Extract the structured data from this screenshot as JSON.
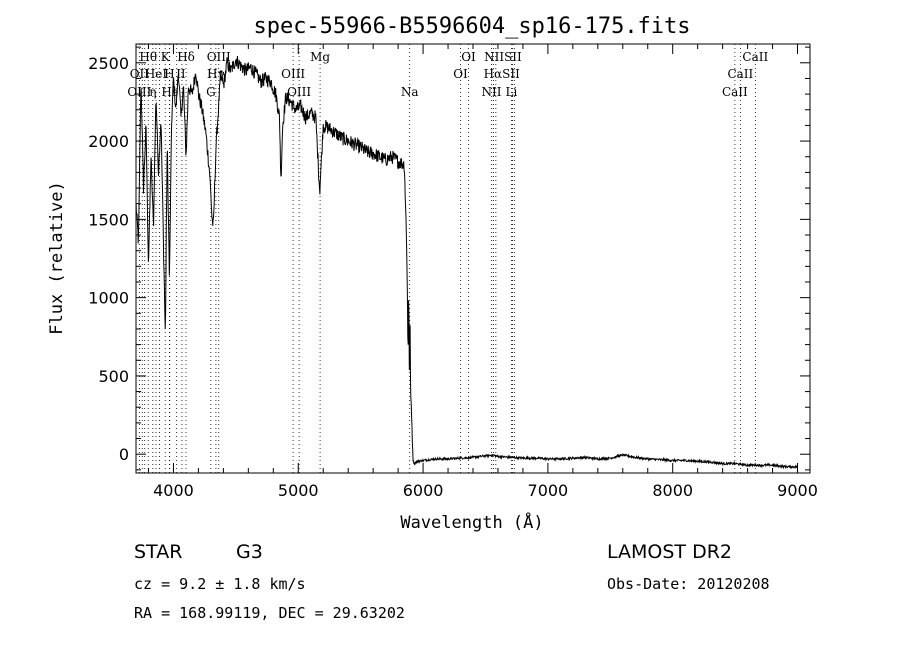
{
  "chart_data": {
    "type": "line",
    "title": "spec-55966-B5596604_sp16-175.fits",
    "xlabel": "Wavelength (Å)",
    "ylabel": "Flux (relative)",
    "xlim": [
      3700,
      9100
    ],
    "ylim": [
      -120,
      2620
    ],
    "xticks": [
      4000,
      5000,
      6000,
      7000,
      8000,
      9000
    ],
    "yticks": [
      0,
      500,
      1000,
      1500,
      2000,
      2500
    ],
    "grid": false,
    "legend": "none",
    "series": [
      {
        "x": [
          3700,
          3720,
          3740,
          3760,
          3780,
          3800,
          3820,
          3840,
          3860,
          3880,
          3900,
          3920,
          3935,
          3950,
          3968,
          3985,
          4000,
          4020,
          4040,
          4060,
          4080,
          4101,
          4120,
          4150,
          4180,
          4200,
          4230,
          4260,
          4290,
          4310,
          4320,
          4340,
          4360,
          4380,
          4400,
          4430,
          4460,
          4500,
          4540,
          4580,
          4620,
          4660,
          4700,
          4740,
          4780,
          4820,
          4850,
          4861,
          4875,
          4900,
          4940,
          4980,
          5020,
          5060,
          5100,
          5140,
          5172,
          5200,
          5250,
          5300,
          5350,
          5400,
          5450,
          5500,
          5550,
          5600,
          5650,
          5700,
          5750,
          5800,
          5850,
          5870,
          5880,
          5885,
          5890,
          5895,
          5900,
          5910,
          5920,
          5930,
          5940,
          5960,
          6000,
          6050,
          6100,
          6200,
          6300,
          6400,
          6500,
          6563,
          6600,
          6700,
          6800,
          6900,
          7000,
          7100,
          7200,
          7300,
          7400,
          7500,
          7600,
          7700,
          7800,
          7900,
          8000,
          8100,
          8200,
          8300,
          8400,
          8500,
          8600,
          8700,
          8800,
          8900,
          9000
        ],
        "y": [
          1600,
          1350,
          2400,
          1700,
          2100,
          1200,
          1900,
          1450,
          2300,
          1800,
          2150,
          1350,
          750,
          2000,
          1100,
          2100,
          2400,
          2200,
          2450,
          2150,
          2350,
          1900,
          2350,
          2300,
          2450,
          2300,
          2200,
          2050,
          1800,
          1500,
          1450,
          1950,
          2200,
          2450,
          2350,
          2500,
          2450,
          2520,
          2480,
          2450,
          2470,
          2430,
          2380,
          2400,
          2380,
          2300,
          2150,
          1750,
          2100,
          2280,
          2250,
          2200,
          2220,
          2150,
          2180,
          2150,
          1680,
          2100,
          2080,
          2050,
          2020,
          2000,
          1980,
          1960,
          1930,
          1920,
          1900,
          1880,
          1900,
          1870,
          1850,
          1300,
          600,
          1100,
          550,
          900,
          400,
          200,
          -40,
          -60,
          -50,
          -45,
          -40,
          -35,
          -30,
          -30,
          -25,
          -20,
          -10,
          -5,
          -15,
          -20,
          -25,
          -25,
          -30,
          -30,
          -25,
          -20,
          -30,
          -25,
          -5,
          -20,
          -30,
          -35,
          -40,
          -40,
          -45,
          -50,
          -60,
          -60,
          -70,
          -70,
          -70,
          -80,
          -80
        ]
      }
    ],
    "line_labels": [
      {
        "text": "Hθ",
        "x": 3798,
        "row": 0
      },
      {
        "text": "K",
        "x": 3934,
        "row": 0
      },
      {
        "text": "Hδ",
        "x": 4101,
        "row": 0
      },
      {
        "text": "OIII",
        "x": 4363,
        "row": 0
      },
      {
        "text": "Mg",
        "x": 5175,
        "row": 0
      },
      {
        "text": "OI",
        "x": 6364,
        "row": 0
      },
      {
        "text": "NIISII",
        "x": 6640,
        "row": 0
      },
      {
        "text": "CaII",
        "x": 8662,
        "row": 0
      },
      {
        "text": "OII",
        "x": 3727,
        "row": 1
      },
      {
        "text": "HeI",
        "x": 3860,
        "row": 1
      },
      {
        "text": "H",
        "x": 3968,
        "row": 1
      },
      {
        "text": "II",
        "x": 4060,
        "row": 1
      },
      {
        "text": "Hγ",
        "x": 4340,
        "row": 1
      },
      {
        "text": "OIII",
        "x": 4959,
        "row": 1
      },
      {
        "text": "OI",
        "x": 6300,
        "row": 1
      },
      {
        "text": "HαSII",
        "x": 6630,
        "row": 1
      },
      {
        "text": "CaII",
        "x": 8542,
        "row": 1
      },
      {
        "text": "OIII",
        "x": 3727,
        "row": 2
      },
      {
        "text": "η",
        "x": 3835,
        "row": 2
      },
      {
        "text": "Hε",
        "x": 3970,
        "row": 2
      },
      {
        "text": "G",
        "x": 4300,
        "row": 2
      },
      {
        "text": "OIII",
        "x": 5007,
        "row": 2
      },
      {
        "text": "Na",
        "x": 5893,
        "row": 2
      },
      {
        "text": "NII",
        "x": 6548,
        "row": 2
      },
      {
        "text": "Li",
        "x": 6708,
        "row": 2
      },
      {
        "text": "CaII",
        "x": 8498,
        "row": 2
      }
    ],
    "line_markers": [
      3727,
      3750,
      3770,
      3798,
      3835,
      3860,
      3889,
      3934,
      3968,
      3970,
      4026,
      4068,
      4101,
      4300,
      4340,
      4363,
      4959,
      5007,
      5175,
      5893,
      6300,
      6364,
      6548,
      6563,
      6583,
      6708,
      6717,
      6731,
      8498,
      8542,
      8662
    ]
  },
  "info": {
    "class": "STAR",
    "subclass": "G3",
    "survey": "LAMOST DR2",
    "cz": "cz = 9.2 ± 1.8 km/s",
    "obs_date": "Obs-Date: 20120208",
    "radec": "RA = 168.99119, DEC =  29.63202"
  }
}
